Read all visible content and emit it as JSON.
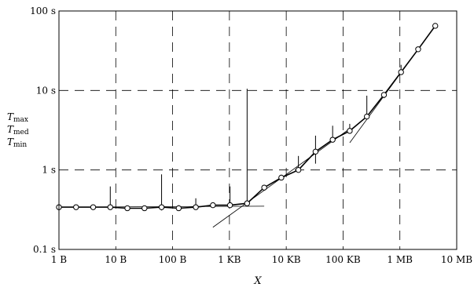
{
  "chart_data": {
    "type": "line",
    "title": "",
    "xlabel": "X",
    "ylabel_lines": [
      {
        "main": "T",
        "sub": "max"
      },
      {
        "main": "T",
        "sub": "med"
      },
      {
        "main": "T",
        "sub": "min"
      }
    ],
    "x_scale": "log2-bytes",
    "y_scale": "log10",
    "xlim_bytes": [
      1,
      10000000
    ],
    "ylim_seconds": [
      0.1,
      100
    ],
    "grid": true,
    "x_ticks": [
      {
        "value": 1,
        "label": "1 B"
      },
      {
        "value": 10,
        "label": "10 B"
      },
      {
        "value": 100,
        "label": "100 B"
      },
      {
        "value": 1000,
        "label": "1 KB"
      },
      {
        "value": 10000,
        "label": "10 KB"
      },
      {
        "value": 100000,
        "label": "100 KB"
      },
      {
        "value": 1000000,
        "label": "1 MB"
      },
      {
        "value": 10000000,
        "label": "10 MB"
      }
    ],
    "y_ticks": [
      {
        "value": 0.1,
        "label": "0.1 s"
      },
      {
        "value": 1,
        "label": "1 s"
      },
      {
        "value": 10,
        "label": "10 s"
      },
      {
        "value": 100,
        "label": "100 s"
      }
    ],
    "series": [
      {
        "x_bytes": [
          1,
          2,
          4,
          8,
          16,
          32,
          64,
          128,
          256,
          512,
          1024,
          2048,
          4096,
          8192,
          16384,
          32768,
          65536,
          131072,
          262144,
          524288,
          1048576,
          2097152,
          4194304
        ],
        "t_med": [
          0.34,
          0.34,
          0.34,
          0.34,
          0.33,
          0.33,
          0.34,
          0.33,
          0.34,
          0.36,
          0.36,
          0.38,
          0.6,
          0.8,
          1.0,
          1.7,
          2.4,
          3.1,
          4.7,
          8.8,
          17,
          33,
          65
        ],
        "t_min": [
          0.32,
          0.32,
          0.32,
          0.32,
          0.31,
          0.31,
          0.31,
          0.31,
          0.32,
          0.34,
          0.34,
          0.35,
          0.55,
          0.76,
          0.95,
          1.2,
          2.3,
          2.9,
          4.4,
          8.0,
          16,
          32,
          62
        ],
        "t_max": [
          0.36,
          0.36,
          0.36,
          0.62,
          0.35,
          0.35,
          0.88,
          0.36,
          0.44,
          0.38,
          0.62,
          10.5,
          0.65,
          0.87,
          1.5,
          2.7,
          3.6,
          3.8,
          8.6,
          9.5,
          21,
          35,
          68
        ]
      }
    ],
    "fit_lines": [
      {
        "x_bytes": [
          1,
          4096
        ],
        "t": [
          0.34,
          0.35
        ]
      },
      {
        "x_bytes": [
          512,
          131072
        ],
        "t": [
          0.19,
          3.3
        ]
      },
      {
        "x_bytes": [
          131072,
          4194304
        ],
        "t": [
          2.2,
          65
        ]
      }
    ]
  }
}
